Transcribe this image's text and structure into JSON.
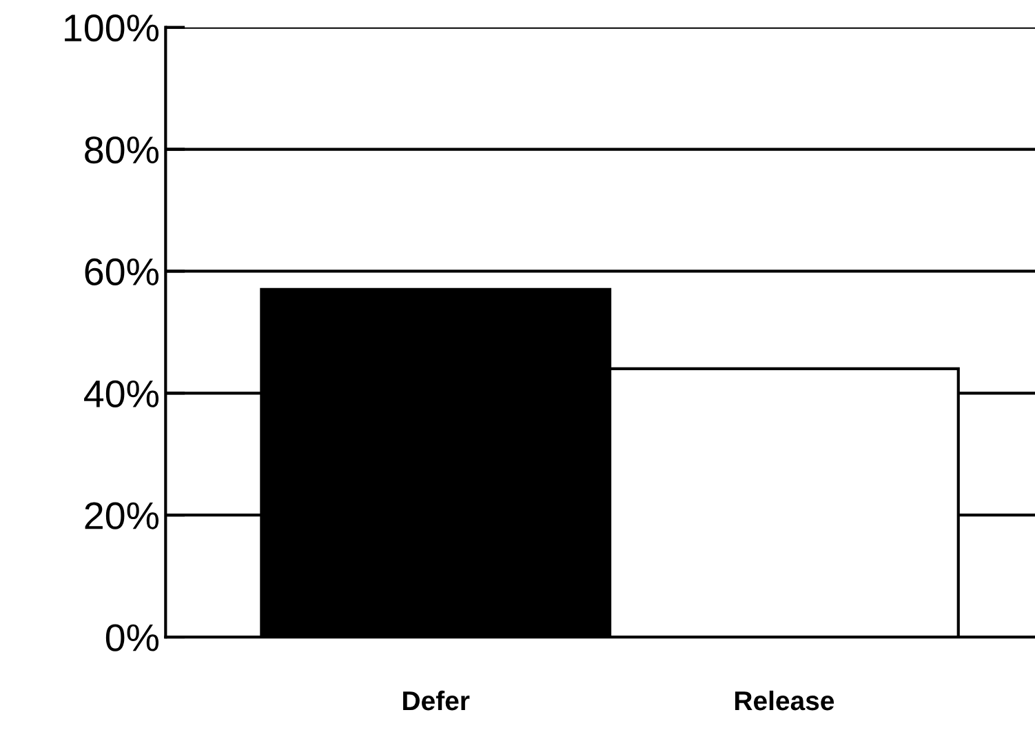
{
  "chart_data": {
    "type": "bar",
    "categories": [
      "Defer",
      "Release"
    ],
    "values": [
      57,
      44
    ],
    "colors": [
      "#000000",
      "#ffffff"
    ],
    "ylim": [
      0,
      100
    ],
    "yticks": [
      {
        "value": 0,
        "label": "0%"
      },
      {
        "value": 20,
        "label": "20%"
      },
      {
        "value": 40,
        "label": "40%"
      },
      {
        "value": 60,
        "label": "60%"
      },
      {
        "value": 80,
        "label": "80%"
      },
      {
        "value": 100,
        "label": "100%"
      }
    ],
    "grid": "y"
  }
}
